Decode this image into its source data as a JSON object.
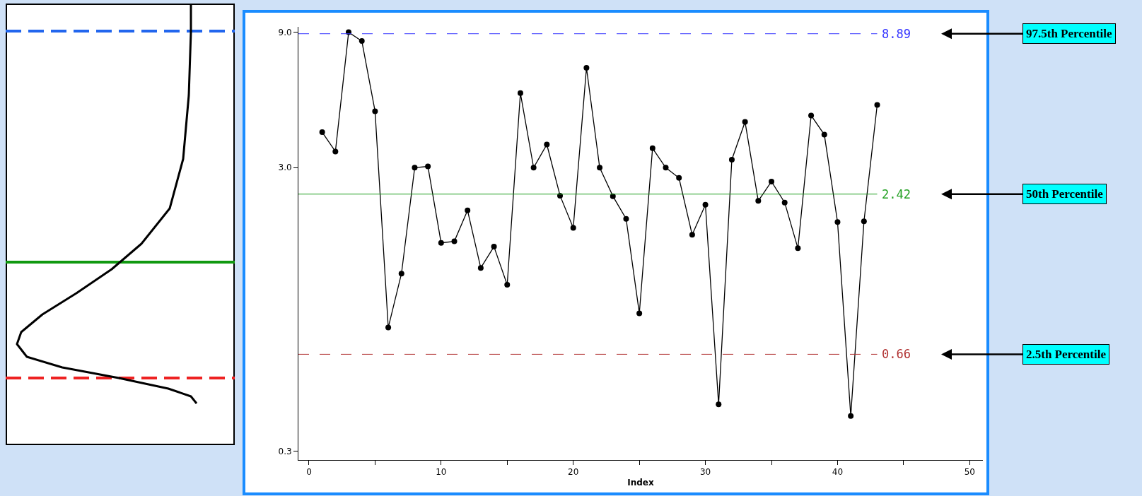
{
  "chart_data": {
    "type": "line",
    "xlabel": "Index",
    "x": [
      1,
      2,
      3,
      4,
      5,
      6,
      7,
      8,
      9,
      10,
      11,
      12,
      13,
      14,
      15,
      16,
      17,
      18,
      19,
      20,
      21,
      22,
      23,
      24,
      25,
      26,
      27,
      28,
      29,
      30,
      31,
      32,
      33,
      34,
      35,
      36,
      37,
      38,
      39,
      40,
      41,
      42,
      43
    ],
    "series": [
      {
        "color": "#000000",
        "values": [
          4.0,
          3.42,
          9.0,
          8.38,
          4.74,
          0.82,
          1.27,
          3.0,
          3.03,
          1.63,
          1.65,
          2.12,
          1.33,
          1.58,
          1.16,
          5.49,
          3.0,
          3.62,
          2.39,
          1.84,
          6.74,
          3.0,
          2.38,
          1.98,
          0.92,
          3.51,
          3.0,
          2.76,
          1.74,
          2.22,
          0.44,
          3.2,
          4.35,
          2.29,
          2.68,
          2.26,
          1.56,
          4.58,
          3.92,
          1.93,
          0.4,
          1.94,
          4.99
        ]
      }
    ],
    "log": "y",
    "marker": "circle",
    "line_style": "solid",
    "xlim": [
      -0.8,
      51
    ],
    "xticks": [
      0,
      {
        "value": 5,
        "label": null
      },
      10,
      {
        "value": 15,
        "label": null
      },
      20,
      {
        "value": 25,
        "label": null
      },
      30,
      {
        "value": 35,
        "label": null
      },
      40,
      {
        "value": 45,
        "label": null
      },
      50
    ],
    "ylim": [
      0.28,
      9.4
    ],
    "yticks": [
      {
        "value": 0.3,
        "label": "0.3"
      },
      {
        "value": 3,
        "label": "3.0"
      },
      {
        "value": 9,
        "label": "9.0"
      }
    ],
    "ref_lines": [
      {
        "axis": "y",
        "value": 8.89,
        "label": "8.89",
        "color": "#3333ff",
        "line_style": "dashed"
      },
      {
        "axis": "y",
        "value": 2.42,
        "label": "2.42",
        "color": "#22a022",
        "line_style": "solid"
      },
      {
        "axis": "y",
        "value": 0.66,
        "label": "0.66",
        "color": "#b03030",
        "line_style": "dashed"
      }
    ],
    "annotations": [
      "97.5th Percentile",
      "50th Percentile",
      "2.5th Percentile"
    ]
  }
}
